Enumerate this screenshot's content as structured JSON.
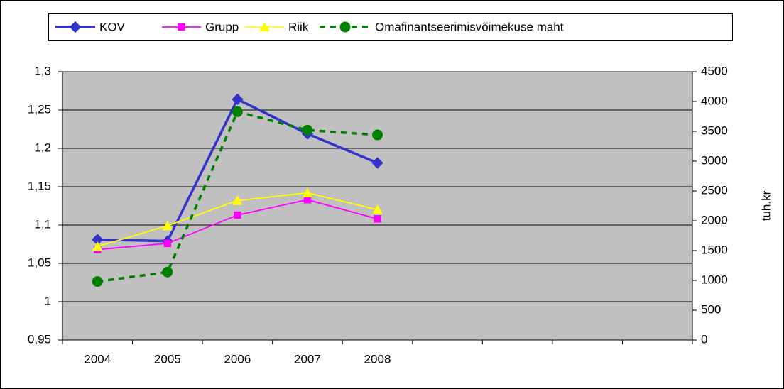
{
  "chart_data": {
    "type": "line",
    "categories": [
      "2004",
      "2005",
      "2006",
      "2007",
      "2008",
      null,
      null,
      null,
      null
    ],
    "series": [
      {
        "name": "KOV",
        "color": "#3333cc",
        "marker": "diamond",
        "line_style": "solid",
        "values": [
          1.081,
          1.079,
          1.264,
          1.219,
          1.181,
          null,
          null,
          null,
          null
        ]
      },
      {
        "name": "Grupp",
        "color": "#ff00ff",
        "marker": "square",
        "line_style": "solid",
        "values": [
          1.068,
          1.076,
          1.113,
          1.133,
          1.108,
          null,
          null,
          null,
          null
        ]
      },
      {
        "name": "Riik",
        "color": "#ffff00",
        "marker": "triangle",
        "line_style": "solid",
        "values": [
          1.072,
          1.099,
          1.132,
          1.142,
          1.12,
          null,
          null,
          null,
          null
        ]
      },
      {
        "name": "Omafinantseerimisvõimekuse maht",
        "color": "#008000",
        "marker": "circle",
        "line_style": "dashed",
        "axis": "y2",
        "values": [
          980,
          1140,
          3830,
          3520,
          3440,
          null,
          null,
          null,
          null
        ]
      }
    ],
    "ylim": [
      0.95,
      1.3
    ],
    "yticks": [
      {
        "value": 0.95,
        "label": "0,95"
      },
      1,
      {
        "value": 1.05,
        "label": "1,05"
      },
      {
        "value": 1.1,
        "label": "1,1"
      },
      {
        "value": 1.15,
        "label": "1,15"
      },
      {
        "value": 1.2,
        "label": "1,2"
      },
      {
        "value": 1.25,
        "label": "1,25"
      },
      {
        "value": 1.3,
        "label": "1,3"
      }
    ],
    "y2lim": [
      0,
      4500
    ],
    "y2ticks": [
      0,
      500,
      1000,
      1500,
      2000,
      2500,
      3000,
      3500,
      4000,
      4500
    ],
    "y2label": "tuh.kr",
    "grid": true,
    "legend": "top"
  }
}
